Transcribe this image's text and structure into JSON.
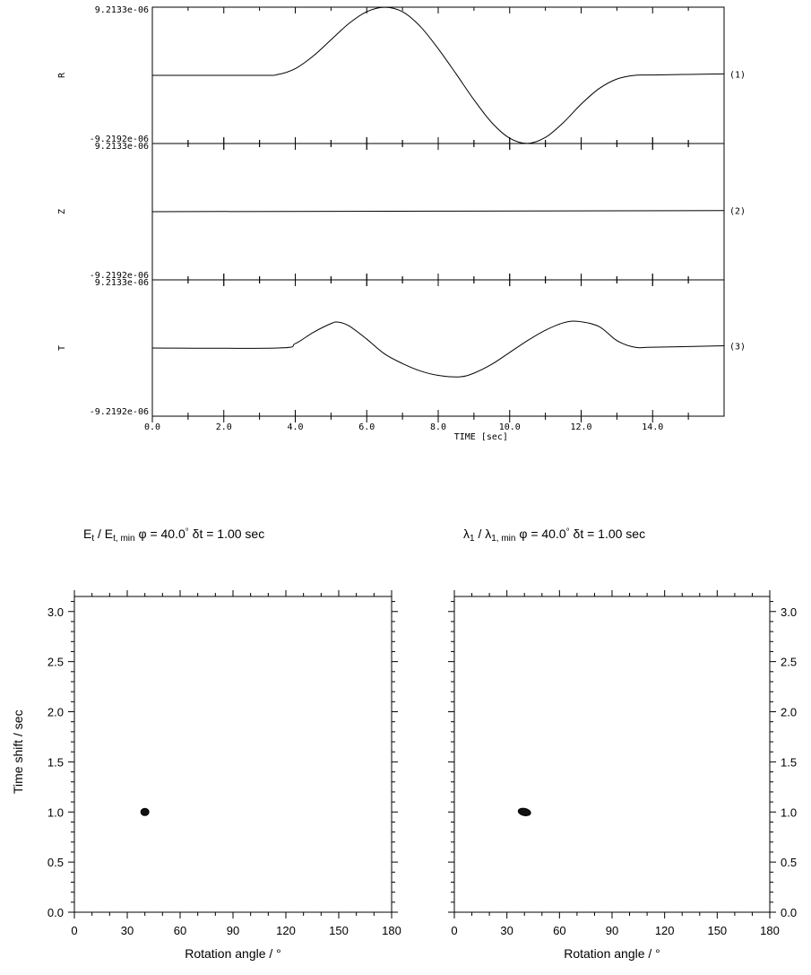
{
  "chart_data": [
    {
      "type": "line",
      "panel": "seismogram-traces",
      "xlabel": "TIME [sec]",
      "xlim": [
        0,
        16
      ],
      "xticks": [
        0,
        2,
        4,
        6,
        8,
        10,
        12,
        14
      ],
      "xtick_labels": [
        "0.0",
        "2.0",
        "4.0",
        "6.0",
        "8.0",
        "10.0",
        "12.0",
        "14.0"
      ],
      "traces": [
        {
          "channel": "R",
          "number": "(1)",
          "ymax_label": "9.2133e-06",
          "ymin_label": "-9.2192e-06",
          "ylim": [
            -9.2192e-06,
            9.2133e-06
          ],
          "x": [
            0,
            3,
            3.5,
            4,
            4.5,
            5,
            5.5,
            6,
            6.5,
            7,
            7.5,
            8,
            8.5,
            9,
            9.5,
            10,
            10.5,
            11,
            11.5,
            12,
            12.5,
            13,
            13.5,
            14,
            16
          ],
          "y": [
            0,
            0,
            1e-07,
            9e-07,
            2.6e-06,
            4.8e-06,
            7e-06,
            8.6e-06,
            9.2e-06,
            8.6e-06,
            6.6e-06,
            3.6e-06,
            2e-07,
            -3.3e-06,
            -6.4e-06,
            -8.5e-06,
            -9.2e-06,
            -8.4e-06,
            -6.4e-06,
            -3.9e-06,
            -1.8e-06,
            -5e-07,
            0,
            5e-08,
            2e-07
          ]
        },
        {
          "channel": "Z",
          "number": "(2)",
          "ymax_label": "9.2133e-06",
          "ymin_label": "-9.2192e-06",
          "ylim": [
            -9.2192e-06,
            9.2133e-06
          ],
          "x": [
            0,
            16
          ],
          "y": [
            0,
            1.5e-07
          ]
        },
        {
          "channel": "T",
          "number": "(3)",
          "ymax_label": "9.2133e-06",
          "ymin_label": "-9.2192e-06",
          "ylim": [
            -9.2192e-06,
            9.2133e-06
          ],
          "x": [
            0,
            3.5,
            4,
            4.5,
            5,
            5.2,
            5.5,
            6,
            6.5,
            7,
            7.5,
            8,
            8.6,
            9,
            9.5,
            10,
            10.5,
            11,
            11.5,
            11.9,
            12.5,
            13,
            13.5,
            14,
            16
          ],
          "y": [
            0,
            0,
            6e-07,
            2.1e-06,
            3.3e-06,
            3.5e-06,
            3e-06,
            1.2e-06,
            -8e-07,
            -2.1e-06,
            -3.1e-06,
            -3.7e-06,
            -3.9e-06,
            -3.4e-06,
            -2.2e-06,
            -6e-07,
            1e-06,
            2.4e-06,
            3.4e-06,
            3.6e-06,
            2.9e-06,
            1e-06,
            1e-07,
            1e-07,
            3e-07
          ]
        }
      ]
    },
    {
      "type": "scatter",
      "panel": "energy-contour",
      "title": "E_t / E_t, min     φ = 40.0°  δt = 1.00 sec",
      "title_parts": {
        "lhs_main": "E",
        "lhs_sub": "t",
        "denom_main": "E",
        "denom_sub": "t, min",
        "phi": "φ = 40.0",
        "deg": "°",
        "dt": "δt = 1.00 sec"
      },
      "xlabel": "Rotation angle / °",
      "ylabel": "Time shift / sec",
      "xlim": [
        0,
        180
      ],
      "ylim": [
        0,
        3.15
      ],
      "xticks": [
        0,
        30,
        60,
        90,
        120,
        150,
        180
      ],
      "yticks": [
        0.0,
        0.5,
        1.0,
        1.5,
        2.0,
        2.5,
        3.0
      ],
      "ytick_labels": [
        "0.0",
        "0.5",
        "1.0",
        "1.5",
        "2.0",
        "2.5",
        "3.0"
      ],
      "y_axis_side": "left",
      "points": [
        {
          "x": 40,
          "y": 1.0
        }
      ]
    },
    {
      "type": "scatter",
      "panel": "eigenvalue-contour",
      "title": "λ_1 / λ_1, min     φ = 40.0°  δt = 1.00 sec",
      "title_parts": {
        "lhs_main": "λ",
        "lhs_sub": "1",
        "denom_main": "λ",
        "denom_sub": "1, min",
        "phi": "φ = 40.0",
        "deg": "°",
        "dt": "δt = 1.00 sec"
      },
      "xlabel": "Rotation angle / °",
      "ylabel": "",
      "xlim": [
        0,
        180
      ],
      "ylim": [
        0,
        3.15
      ],
      "xticks": [
        0,
        30,
        60,
        90,
        120,
        150,
        180
      ],
      "yticks": [
        0.0,
        0.5,
        1.0,
        1.5,
        2.0,
        2.5,
        3.0
      ],
      "ytick_labels": [
        "0.0",
        "0.5",
        "1.0",
        "1.5",
        "2.0",
        "2.5",
        "3.0"
      ],
      "y_axis_side": "right",
      "points": [
        {
          "x": 40,
          "y": 1.0
        }
      ]
    }
  ]
}
